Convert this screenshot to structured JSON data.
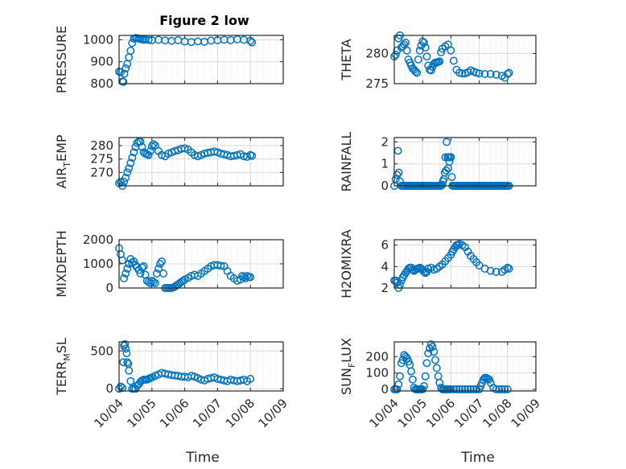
{
  "title": "Figure 2 low",
  "colors": {
    "marker": "#0072BD",
    "axis": "#262626",
    "grid": "#d9d9d9"
  },
  "x_axis": {
    "label": "Time",
    "ticks": [
      "10/04",
      "10/05",
      "10/06",
      "10/07",
      "10/08",
      "10/09"
    ],
    "range_days": [
      0,
      5
    ]
  },
  "chart_data": [
    {
      "type": "scatter",
      "title": "Figure 2 low",
      "ylabel": "PRESSURE",
      "ylim": [
        800,
        1020
      ],
      "yticks": [
        800,
        900,
        1000
      ],
      "grid": true,
      "x": [
        0.0,
        0.05,
        0.1,
        0.13,
        0.16,
        0.2,
        0.25,
        0.3,
        0.35,
        0.4,
        0.45,
        0.5,
        0.55,
        0.6,
        0.65,
        0.7,
        0.75,
        0.8,
        0.9,
        1.0,
        1.2,
        1.4,
        1.6,
        1.8,
        2.0,
        2.2,
        2.4,
        2.6,
        2.8,
        3.0,
        3.2,
        3.4,
        3.6,
        3.8,
        4.0,
        4.05
      ],
      "y": [
        855,
        852,
        810,
        808,
        845,
        870,
        890,
        920,
        950,
        985,
        1005,
        1008,
        1007,
        1005,
        1003,
        1002,
        1000,
        1001,
        999,
        998,
        1000,
        997,
        995,
        998,
        992,
        990,
        993,
        991,
        996,
        998,
        1000,
        998,
        1002,
        1000,
        995,
        988
      ]
    },
    {
      "type": "scatter",
      "ylabel": "THETA",
      "ylim": [
        275,
        283
      ],
      "yticks": [
        275,
        280
      ],
      "grid": true,
      "x": [
        0.0,
        0.05,
        0.1,
        0.15,
        0.2,
        0.25,
        0.3,
        0.35,
        0.4,
        0.45,
        0.5,
        0.55,
        0.6,
        0.65,
        0.7,
        0.75,
        0.8,
        0.85,
        0.9,
        0.95,
        1.0,
        1.05,
        1.1,
        1.15,
        1.2,
        1.25,
        1.3,
        1.35,
        1.4,
        1.45,
        1.5,
        1.55,
        1.6,
        1.65,
        1.7,
        1.8,
        1.9,
        2.0,
        2.1,
        2.2,
        2.3,
        2.4,
        2.5,
        2.6,
        2.7,
        2.8,
        2.9,
        3.0,
        3.2,
        3.4,
        3.6,
        3.8,
        3.9,
        4.0,
        4.05
      ],
      "y": [
        279.5,
        279.8,
        280.5,
        282.5,
        283,
        281,
        281.2,
        281.5,
        281.8,
        280.5,
        279,
        278.5,
        278,
        277.5,
        277.3,
        277,
        276.8,
        279,
        280.5,
        281.3,
        282,
        281.8,
        281,
        279.5,
        278,
        277.3,
        277.2,
        277.8,
        278.3,
        278.5,
        278.5,
        278.6,
        278.7,
        280.2,
        280.8,
        281.2,
        281.5,
        280.5,
        278.8,
        277.3,
        276.8,
        276.7,
        276.7,
        276.9,
        277.2,
        277,
        276.8,
        276.7,
        276.6,
        276.6,
        276.5,
        276.3,
        276,
        276.6,
        276.8
      ]
    },
    {
      "type": "scatter",
      "ylabel": "AIR_TEMP",
      "ylabel_parts": [
        "AIR",
        "T",
        "EMP"
      ],
      "ylim": [
        265,
        283
      ],
      "yticks": [
        270,
        275,
        280
      ],
      "grid": true,
      "x": [
        0.0,
        0.05,
        0.1,
        0.15,
        0.2,
        0.25,
        0.3,
        0.35,
        0.4,
        0.45,
        0.5,
        0.55,
        0.6,
        0.65,
        0.7,
        0.75,
        0.8,
        0.85,
        0.9,
        0.95,
        1.0,
        1.05,
        1.1,
        1.2,
        1.3,
        1.4,
        1.5,
        1.6,
        1.7,
        1.8,
        1.9,
        2.0,
        2.1,
        2.2,
        2.3,
        2.4,
        2.5,
        2.6,
        2.7,
        2.8,
        2.9,
        3.0,
        3.1,
        3.2,
        3.3,
        3.4,
        3.5,
        3.6,
        3.7,
        3.8,
        3.9,
        4.0,
        4.05
      ],
      "y": [
        266,
        266.5,
        265,
        266.5,
        268,
        270,
        271.5,
        273.5,
        275.5,
        277.5,
        279.5,
        281,
        281.5,
        281.5,
        279.5,
        277.5,
        277,
        276.8,
        276.5,
        278,
        279.8,
        280.5,
        280,
        278,
        276.5,
        276,
        277,
        277.5,
        278,
        278.3,
        278.8,
        279,
        278.5,
        277.5,
        276.5,
        276,
        276.5,
        277,
        277.3,
        277.5,
        277.8,
        277.5,
        277,
        276.8,
        276.5,
        276,
        276.2,
        276.5,
        276.8,
        276,
        275.8,
        276.5,
        276.2
      ]
    },
    {
      "type": "scatter",
      "ylabel": "RAINFALL",
      "ylim": [
        0,
        2.2
      ],
      "yticks": [
        0,
        1,
        2
      ],
      "grid": true,
      "x": [
        0.0,
        0.05,
        0.1,
        0.13,
        0.16,
        0.2,
        0.25,
        0.3,
        0.35,
        0.4,
        0.45,
        0.5,
        0.55,
        0.6,
        0.65,
        0.7,
        0.75,
        0.8,
        0.85,
        0.9,
        0.95,
        1.0,
        1.05,
        1.1,
        1.15,
        1.2,
        1.25,
        1.3,
        1.35,
        1.4,
        1.45,
        1.5,
        1.55,
        1.6,
        1.65,
        1.7,
        1.72,
        1.75,
        1.78,
        1.8,
        1.83,
        1.85,
        1.88,
        1.9,
        1.93,
        1.95,
        1.98,
        2.0,
        2.03,
        2.05,
        2.1,
        2.15,
        2.2,
        2.25,
        2.3,
        2.35,
        2.4,
        2.45,
        2.5,
        2.55,
        2.6,
        2.65,
        2.7,
        2.75,
        2.8,
        2.85,
        2.9,
        2.95,
        3.0,
        3.05,
        3.1,
        3.15,
        3.2,
        3.25,
        3.3,
        3.35,
        3.4,
        3.45,
        3.5,
        3.55,
        3.6,
        3.65,
        3.7,
        3.75,
        3.8,
        3.85,
        3.9,
        3.95,
        4.0,
        4.05
      ],
      "y": [
        0,
        0.3,
        0.5,
        1.6,
        0.6,
        0.2,
        0,
        0,
        0,
        0,
        0,
        0,
        0,
        0,
        0,
        0,
        0,
        0,
        0,
        0,
        0,
        0,
        0,
        0,
        0,
        0,
        0,
        0,
        0,
        0,
        0,
        0,
        0,
        0,
        0,
        0.05,
        0.2,
        0.3,
        0.6,
        1.3,
        0.7,
        2.0,
        1.3,
        0.8,
        1.3,
        1.1,
        1.3,
        1.3,
        0.4,
        0,
        0,
        0,
        0,
        0,
        0,
        0,
        0,
        0,
        0,
        0,
        0,
        0,
        0,
        0,
        0,
        0,
        0,
        0,
        0,
        0,
        0,
        0,
        0,
        0,
        0,
        0,
        0,
        0,
        0,
        0,
        0,
        0,
        0,
        0,
        0,
        0,
        0,
        0,
        0,
        0
      ]
    },
    {
      "type": "scatter",
      "ylabel": "MIXDEPTH",
      "ylim": [
        0,
        2000
      ],
      "yticks": [
        0,
        1000,
        2000
      ],
      "grid": true,
      "x": [
        0.0,
        0.05,
        0.1,
        0.15,
        0.2,
        0.25,
        0.3,
        0.35,
        0.4,
        0.45,
        0.5,
        0.55,
        0.6,
        0.65,
        0.7,
        0.75,
        0.8,
        0.85,
        0.9,
        0.95,
        1.0,
        1.05,
        1.1,
        1.15,
        1.2,
        1.25,
        1.3,
        1.35,
        1.4,
        1.45,
        1.5,
        1.55,
        1.6,
        1.65,
        1.7,
        1.75,
        1.8,
        1.85,
        1.9,
        1.95,
        2.0,
        2.1,
        2.2,
        2.3,
        2.4,
        2.5,
        2.6,
        2.7,
        2.8,
        2.9,
        3.0,
        3.1,
        3.2,
        3.3,
        3.4,
        3.5,
        3.6,
        3.7,
        3.75,
        3.8,
        3.85,
        3.9,
        3.95,
        4.0
      ],
      "y": [
        1650,
        1400,
        1150,
        400,
        600,
        800,
        1000,
        1200,
        1050,
        1100,
        950,
        850,
        750,
        600,
        850,
        900,
        550,
        300,
        250,
        200,
        300,
        250,
        200,
        600,
        800,
        1000,
        1100,
        600,
        0,
        0,
        0,
        0,
        0,
        20,
        60,
        110,
        150,
        200,
        250,
        300,
        350,
        420,
        500,
        550,
        500,
        600,
        700,
        800,
        900,
        950,
        950,
        920,
        900,
        700,
        500,
        400,
        300,
        350,
        500,
        450,
        400,
        500,
        450,
        450
      ]
    },
    {
      "type": "scatter",
      "ylabel": "H2OMIXRA",
      "ylim": [
        2,
        6.5
      ],
      "yticks": [
        2,
        4,
        6
      ],
      "grid": true,
      "x": [
        0.0,
        0.05,
        0.1,
        0.15,
        0.2,
        0.25,
        0.3,
        0.35,
        0.4,
        0.45,
        0.5,
        0.55,
        0.6,
        0.65,
        0.7,
        0.75,
        0.8,
        0.85,
        0.9,
        0.95,
        1.0,
        1.05,
        1.1,
        1.15,
        1.2,
        1.3,
        1.4,
        1.5,
        1.6,
        1.7,
        1.8,
        1.9,
        2.0,
        2.05,
        2.1,
        2.15,
        2.2,
        2.25,
        2.3,
        2.4,
        2.5,
        2.6,
        2.7,
        2.8,
        2.9,
        3.0,
        3.2,
        3.4,
        3.6,
        3.8,
        3.9,
        4.0,
        4.05
      ],
      "y": [
        2.7,
        2.7,
        2.5,
        2.0,
        2.3,
        2.7,
        3.0,
        3.2,
        3.4,
        3.6,
        3.8,
        3.9,
        3.9,
        3.7,
        3.6,
        3.7,
        3.8,
        3.8,
        3.9,
        3.8,
        3.7,
        3.5,
        3.4,
        3.5,
        3.8,
        3.9,
        3.7,
        3.8,
        4.0,
        4.2,
        4.5,
        4.8,
        5.1,
        5.4,
        5.6,
        5.8,
        6.0,
        6.0,
        6.1,
        6.0,
        5.8,
        5.4,
        5.0,
        4.7,
        4.4,
        4.1,
        3.8,
        3.6,
        3.5,
        3.5,
        3.7,
        3.9,
        3.8
      ]
    },
    {
      "type": "scatter",
      "ylabel": "TERR_MSL",
      "ylabel_parts": [
        "TERR",
        "M",
        "SL"
      ],
      "ylim": [
        -30,
        620
      ],
      "yticks": [
        0,
        500
      ],
      "grid": true,
      "x": [
        0.0,
        0.05,
        0.1,
        0.13,
        0.15,
        0.18,
        0.2,
        0.23,
        0.25,
        0.28,
        0.3,
        0.35,
        0.4,
        0.45,
        0.5,
        0.55,
        0.6,
        0.65,
        0.7,
        0.75,
        0.8,
        0.85,
        0.9,
        0.95,
        1.0,
        1.1,
        1.2,
        1.3,
        1.4,
        1.5,
        1.6,
        1.7,
        1.8,
        1.9,
        2.0,
        2.1,
        2.2,
        2.3,
        2.4,
        2.5,
        2.6,
        2.7,
        2.8,
        2.9,
        3.0,
        3.1,
        3.2,
        3.3,
        3.4,
        3.5,
        3.6,
        3.7,
        3.8,
        3.9,
        4.0
      ],
      "y": [
        0,
        30,
        10,
        350,
        570,
        590,
        530,
        470,
        350,
        330,
        240,
        100,
        0,
        0,
        0,
        40,
        60,
        90,
        110,
        120,
        120,
        120,
        130,
        140,
        150,
        170,
        190,
        210,
        200,
        190,
        180,
        175,
        170,
        160,
        160,
        150,
        170,
        160,
        140,
        120,
        110,
        130,
        140,
        150,
        130,
        120,
        110,
        100,
        120,
        110,
        100,
        110,
        120,
        100,
        130
      ]
    },
    {
      "type": "scatter",
      "ylabel": "SUN_FLUX",
      "ylabel_parts": [
        "SUN",
        "F",
        "LUX"
      ],
      "ylim": [
        -10,
        290
      ],
      "yticks": [
        0,
        100,
        200
      ],
      "grid": true,
      "x": [
        0.0,
        0.05,
        0.1,
        0.15,
        0.2,
        0.25,
        0.3,
        0.35,
        0.4,
        0.45,
        0.5,
        0.55,
        0.6,
        0.65,
        0.7,
        0.75,
        0.8,
        0.85,
        0.9,
        0.95,
        1.0,
        1.05,
        1.1,
        1.15,
        1.2,
        1.25,
        1.3,
        1.35,
        1.4,
        1.45,
        1.5,
        1.55,
        1.6,
        1.65,
        1.7,
        1.75,
        1.8,
        1.85,
        1.9,
        1.95,
        2.0,
        2.1,
        2.2,
        2.3,
        2.4,
        2.5,
        2.6,
        2.7,
        2.8,
        2.9,
        3.0,
        3.05,
        3.1,
        3.15,
        3.2,
        3.25,
        3.3,
        3.35,
        3.4,
        3.5,
        3.6,
        3.7,
        3.8,
        3.9,
        4.0
      ],
      "y": [
        0,
        0,
        0,
        30,
        80,
        160,
        180,
        210,
        200,
        190,
        170,
        150,
        110,
        60,
        10,
        0,
        0,
        0,
        0,
        0,
        0,
        20,
        80,
        160,
        220,
        250,
        275,
        260,
        230,
        180,
        130,
        80,
        40,
        10,
        0,
        0,
        0,
        0,
        0,
        0,
        0,
        0,
        0,
        0,
        0,
        0,
        0,
        0,
        0,
        0,
        0,
        20,
        40,
        60,
        70,
        70,
        65,
        60,
        40,
        10,
        0,
        0,
        0,
        0,
        0
      ]
    }
  ]
}
